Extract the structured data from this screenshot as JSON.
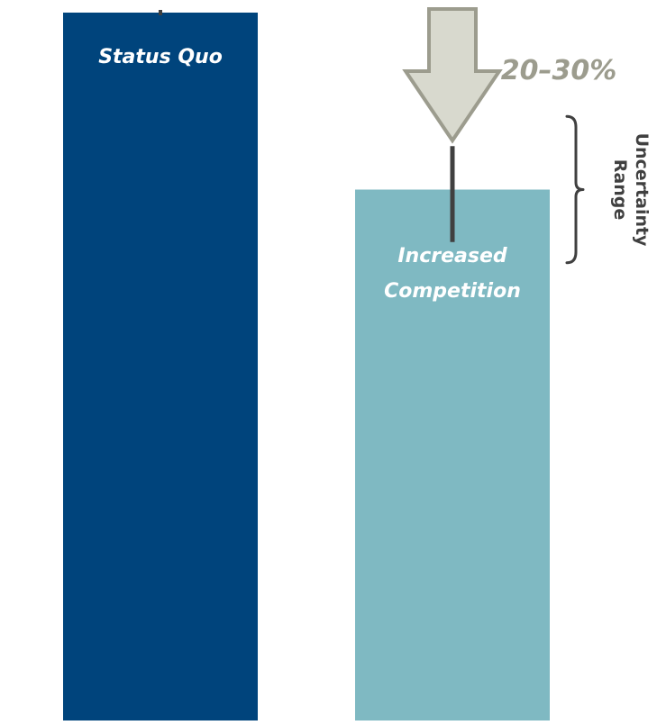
{
  "chart_data": {
    "type": "bar",
    "categories": [
      "Status Quo",
      "Increased Competition"
    ],
    "values": [
      100,
      75
    ],
    "ylim": [
      0,
      100
    ],
    "reduction_label": "20–30%",
    "uncertainty": {
      "category": "Increased Competition",
      "low": 70,
      "high": 80,
      "label_lines": [
        "Uncertainty",
        "Range"
      ]
    },
    "grid": false,
    "legend": "none"
  },
  "colors": {
    "status_quo_bar": "#00447C",
    "competition_bar": "#7FB9C2",
    "bar_label_text": "#FFFFFF",
    "arrow_fill": "#D8D9CE",
    "arrow_stroke": "#9C9C8E",
    "reduction_text": "#9C9C8E",
    "error_bar": "#404040",
    "bracket": "#404040",
    "uncertainty_text": "#404040"
  },
  "icons": {
    "reduction_arrow": "down-arrow-icon",
    "uncertainty_bracket": "right-brace-icon"
  }
}
